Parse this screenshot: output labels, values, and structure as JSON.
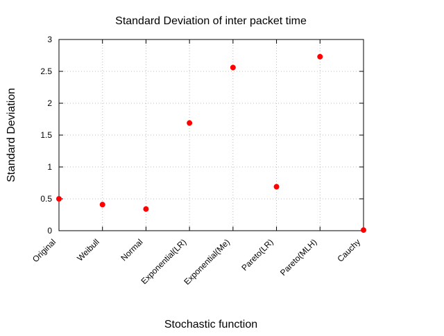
{
  "chart_data": {
    "type": "scatter",
    "title": "Standard Deviation of inter packet time",
    "xlabel": "Stochastic function",
    "ylabel": "Standard Deviation",
    "categories": [
      "Original",
      "Weibull",
      "Normal",
      "Exponential(LR)",
      "Exponential(Me)",
      "Pareto(LR)",
      "Pareto(MLH)",
      "Cauchy"
    ],
    "values": [
      0.5,
      0.41,
      0.34,
      1.69,
      2.56,
      0.69,
      2.73,
      0.01
    ],
    "ylim": [
      0,
      3
    ],
    "yticks": [
      "0",
      "0.5",
      "1",
      "1.5",
      "2",
      "2.5",
      "3"
    ],
    "grid": true,
    "legend": "none",
    "colors": {
      "point": "#ff0000",
      "grid": "#bbbbbb",
      "axis": "#000000"
    }
  }
}
